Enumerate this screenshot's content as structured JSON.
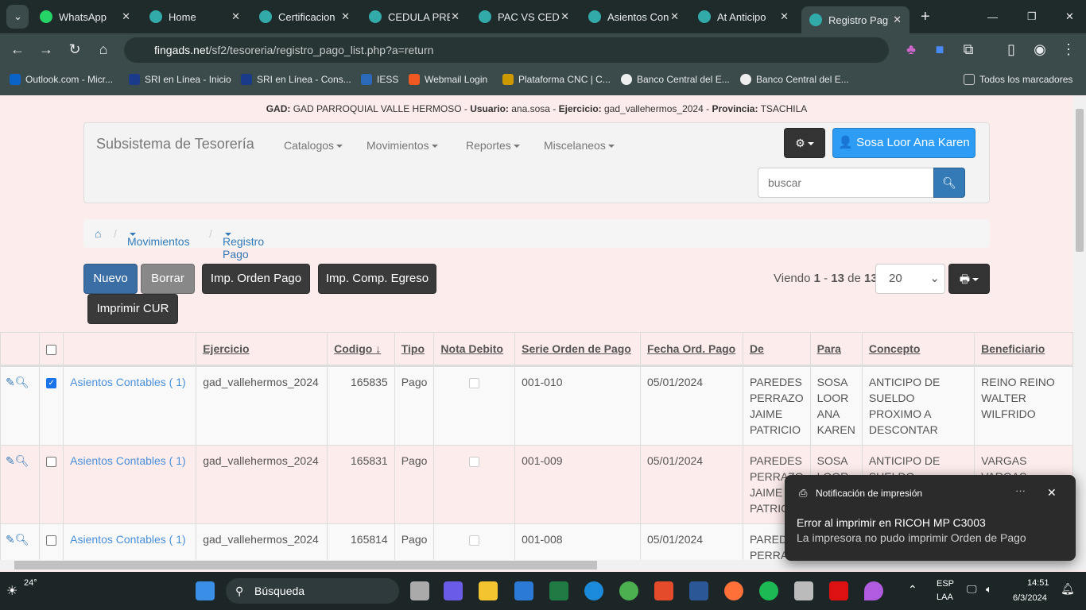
{
  "browser": {
    "tabs": [
      {
        "label": "WhatsApp",
        "icon": "whatsapp-icon"
      },
      {
        "label": "Home",
        "icon": "fingads-icon"
      },
      {
        "label": "Certificacion",
        "icon": "fingads-icon"
      },
      {
        "label": "CEDULA PRE",
        "icon": "fingads-icon"
      },
      {
        "label": "PAC VS CEDU",
        "icon": "fingads-icon"
      },
      {
        "label": "Asientos Con",
        "icon": "fingads-icon"
      },
      {
        "label": "At Anticipo",
        "icon": "fingads-icon"
      },
      {
        "label": "Registro Pag",
        "icon": "fingads-icon",
        "active": true
      }
    ],
    "url_domain": "fingads.net",
    "url_path": "/sf2/tesoreria/registro_pago_list.php?a=return",
    "bookmarks": [
      "Outlook.com - Micr...",
      "SRI en Línea - Inicio",
      "SRI en Línea - Cons...",
      "IESS",
      "Webmail Login",
      "Plataforma CNC | C...",
      "Banco Central del E...",
      "Banco Central del E..."
    ],
    "all_bookmarks": "Todos los marcadores"
  },
  "header": {
    "gad_label": "GAD:",
    "gad": "GAD PARROQUIAL VALLE HERMOSO",
    "user_label": "Usuario:",
    "user": "ana.sosa",
    "ejercicio_label": "Ejercicio:",
    "ejercicio": "gad_vallehermos_2024",
    "provincia_label": "Provincia:",
    "provincia": "TSACHILA"
  },
  "navbar": {
    "brand": "Subsistema de Tesorería",
    "menus": [
      "Catalogos",
      "Movimientos",
      "Reportes",
      "Miscelaneos"
    ],
    "user_button": "Sosa Loor Ana Karen",
    "search_placeholder": "buscar"
  },
  "breadcrumb": [
    "Movimientos",
    "Registro Pago"
  ],
  "actions": {
    "nuevo": "Nuevo",
    "borrar": "Borrar",
    "imp_orden": "Imp. Orden Pago",
    "imp_comp": "Imp. Comp. Egreso",
    "imprimir_cur": "Imprimir CUR"
  },
  "pager": {
    "prefix": "Viendo",
    "from": "1",
    "to": "13",
    "of_label": "de",
    "total": "13",
    "page_size": "20"
  },
  "table": {
    "columns": [
      "Ejercicio",
      "Codigo",
      "Tipo",
      "Nota Debito",
      "Serie Orden de Pago",
      "Fecha Ord. Pago",
      "De",
      "Para",
      "Concepto",
      "Beneficiario"
    ],
    "rows": [
      {
        "link": "Asientos Contables ( 1)",
        "checked": true,
        "ejercicio": "gad_vallehermos_2024",
        "codigo": "165835",
        "tipo": "Pago",
        "serie": "001-010",
        "fecha": "05/01/2024",
        "de": "PAREDES PERRAZO JAIME PATRICIO",
        "para": "SOSA LOOR ANA KAREN",
        "concepto": "ANTICIPO DE SUELDO PROXIMO A DESCONTAR",
        "beneficiario": "REINO REINO WALTER WILFRIDO"
      },
      {
        "link": "Asientos Contables ( 1)",
        "checked": false,
        "ejercicio": "gad_vallehermos_2024",
        "codigo": "165831",
        "tipo": "Pago",
        "serie": "001-009",
        "fecha": "05/01/2024",
        "de": "PAREDES PERRAZO JAIME PATRICIO",
        "para": "SOSA LOOR",
        "concepto": "ANTICIPO DE SUELDO PROXIMO",
        "beneficiario": "VARGAS VARGAS EDGAR"
      },
      {
        "link": "Asientos Contables ( 1)",
        "checked": false,
        "ejercicio": "gad_vallehermos_2024",
        "codigo": "165814",
        "tipo": "Pago",
        "serie": "001-008",
        "fecha": "05/01/2024",
        "de": "PAREDES PERRAZO",
        "para": "",
        "concepto": "",
        "beneficiario": ""
      }
    ]
  },
  "toast": {
    "app": "Notificación de impresión",
    "title": "Error al imprimir en RICOH MP C3003",
    "body": "La impresora no pudo imprimir Orden de Pago"
  },
  "taskbar": {
    "temp": "24°",
    "search": "Búsqueda",
    "lang1": "ESP",
    "lang2": "LAA",
    "time": "14:51",
    "date": "6/3/2024"
  },
  "colors": {
    "page_bg": "#fdecec",
    "primary": "#337ab7",
    "info": "#2d9cf4",
    "dark": "#333333"
  }
}
